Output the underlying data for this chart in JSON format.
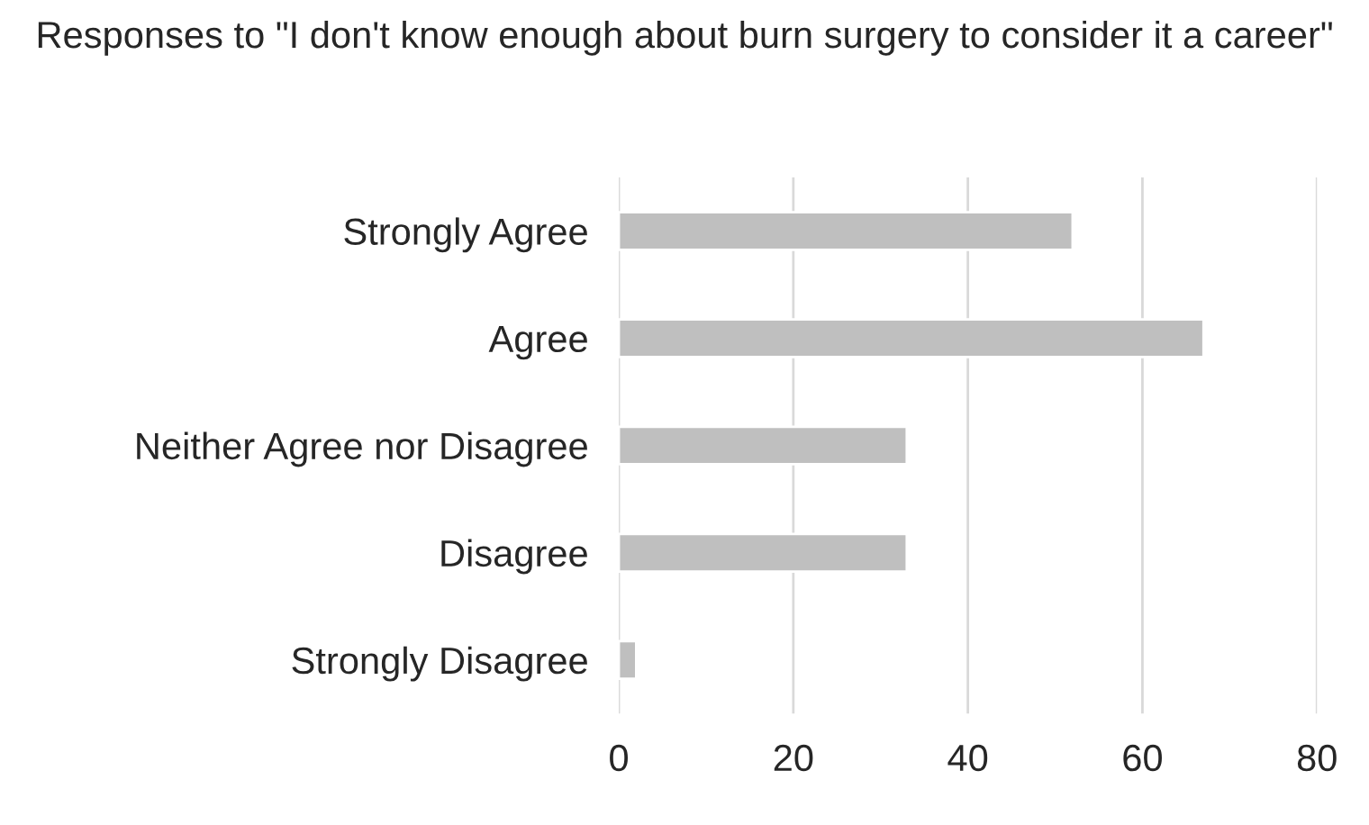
{
  "chart_data": {
    "type": "bar",
    "orientation": "horizontal",
    "title": "Responses to \"I don't know enough about burn surgery to consider it a career\"",
    "categories": [
      "Strongly Agree",
      "Agree",
      "Neither Agree nor Disagree",
      "Disagree",
      "Strongly Disagree"
    ],
    "values": [
      52,
      67,
      33,
      33,
      2
    ],
    "color": "#bfbfbf",
    "xlim": [
      0,
      80
    ],
    "xticks": [
      0,
      20,
      40,
      60,
      80
    ],
    "grid": "x"
  }
}
